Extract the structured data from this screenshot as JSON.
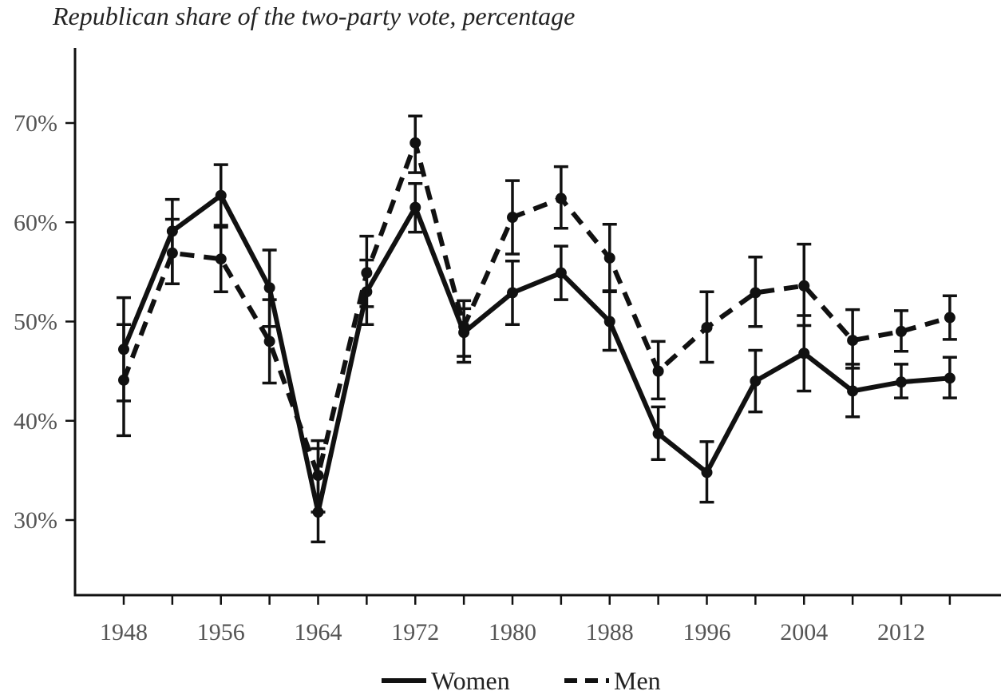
{
  "chart_data": {
    "type": "line",
    "title": "Republican share of the two-party vote, percentage",
    "xlabel": "",
    "ylabel": "",
    "x": [
      1948,
      1952,
      1956,
      1960,
      1964,
      1968,
      1972,
      1976,
      1980,
      1984,
      1988,
      1992,
      1996,
      2000,
      2004,
      2008,
      2012,
      2016
    ],
    "x_ticks": [
      "1948",
      "1956",
      "1964",
      "1972",
      "1980",
      "1988",
      "1996",
      "2004",
      "2012"
    ],
    "y_ticks": [
      "30%",
      "40%",
      "50%",
      "60%",
      "70%"
    ],
    "xlim": [
      1944,
      2020
    ],
    "ylim": [
      22,
      77
    ],
    "grid": false,
    "legend_position": "bottom",
    "series": [
      {
        "name": "Women",
        "style": "solid",
        "color": "#111111",
        "values": [
          47.2,
          59.1,
          62.7,
          53.4,
          30.8,
          53.0,
          61.5,
          48.9,
          52.9,
          54.9,
          50.0,
          38.7,
          34.8,
          44.0,
          46.8,
          43.0,
          43.9,
          44.3
        ],
        "err_low": [
          42.0,
          53.8,
          59.5,
          49.5,
          27.8,
          49.7,
          59.0,
          45.9,
          49.7,
          52.2,
          47.1,
          36.1,
          31.8,
          40.9,
          43.0,
          40.4,
          42.3,
          42.3
        ],
        "err_high": [
          52.4,
          60.3,
          65.8,
          57.2,
          37.2,
          56.2,
          63.9,
          51.3,
          56.1,
          57.6,
          53.1,
          41.4,
          37.9,
          47.1,
          50.6,
          45.7,
          45.7,
          46.4
        ]
      },
      {
        "name": "Men",
        "style": "dashed",
        "color": "#111111",
        "values": [
          44.1,
          56.9,
          56.3,
          48.0,
          34.5,
          54.9,
          68.0,
          49.5,
          60.5,
          62.4,
          56.4,
          45.0,
          49.4,
          52.9,
          53.6,
          48.1,
          49.0,
          50.4
        ],
        "err_low": [
          38.5,
          53.8,
          53.0,
          43.8,
          30.8,
          51.5,
          65.0,
          46.5,
          56.8,
          59.4,
          53.0,
          42.2,
          45.9,
          49.5,
          49.6,
          45.3,
          47.0,
          48.2
        ],
        "err_high": [
          49.7,
          62.3,
          59.7,
          52.2,
          38.0,
          58.6,
          70.7,
          52.1,
          64.2,
          65.6,
          59.8,
          48.0,
          53.0,
          56.5,
          57.8,
          51.2,
          51.1,
          52.6
        ]
      }
    ]
  }
}
